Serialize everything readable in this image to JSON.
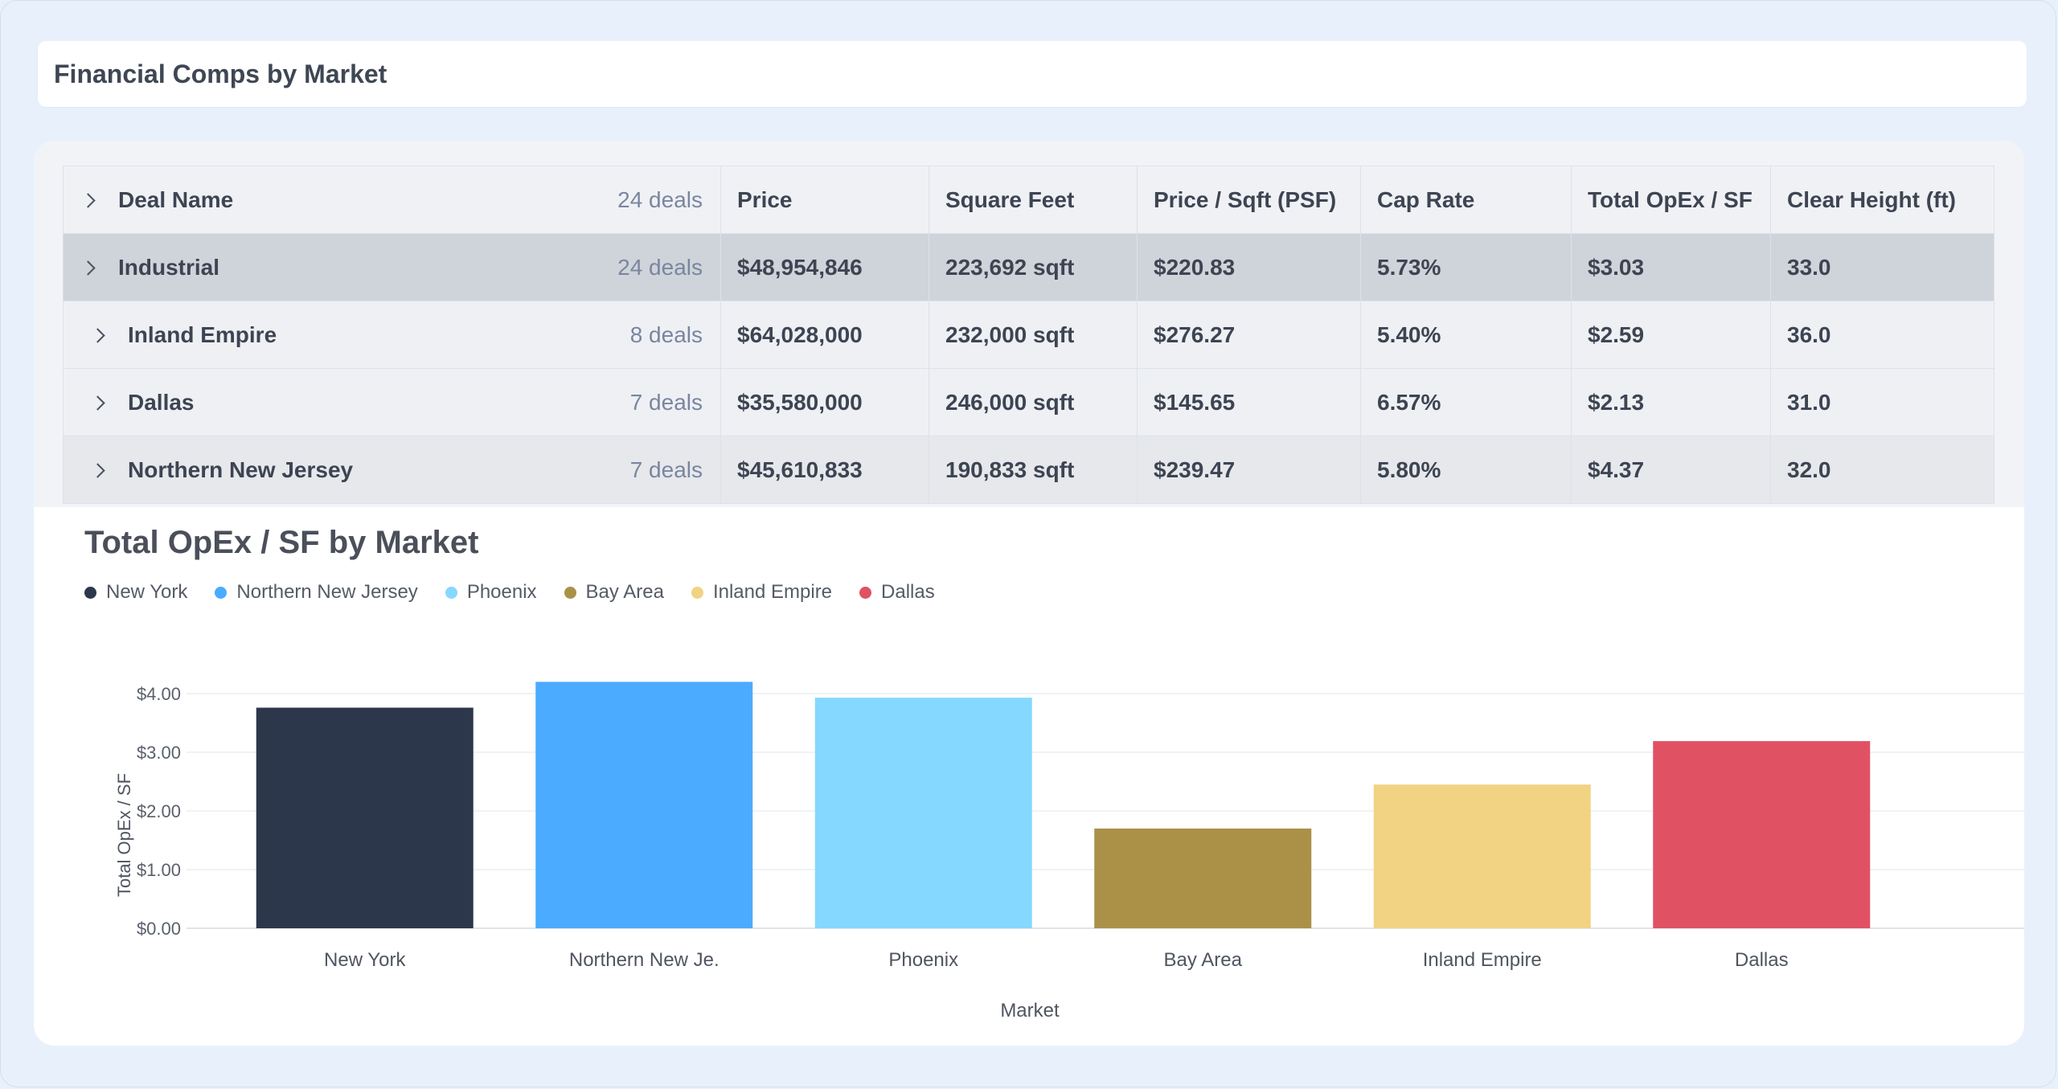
{
  "page": {
    "title": "Financial Comps by Market"
  },
  "table": {
    "columns": [
      "Deal Name",
      "Price",
      "Square Feet",
      "Price / Sqft (PSF)",
      "Cap Rate",
      "Total OpEx / SF",
      "Clear Height (ft)"
    ],
    "header_count": "24 deals",
    "rows": [
      {
        "kind": "group",
        "name": "Industrial",
        "count": "24 deals",
        "price": "$48,954,846",
        "sqft": "223,692 sqft",
        "psf": "$220.83",
        "cap": "5.73%",
        "opex": "$3.03",
        "height": "33.0"
      },
      {
        "kind": "sub",
        "name": "Inland Empire",
        "count": "8 deals",
        "price": "$64,028,000",
        "sqft": "232,000 sqft",
        "psf": "$276.27",
        "cap": "5.40%",
        "opex": "$2.59",
        "height": "36.0"
      },
      {
        "kind": "sub",
        "name": "Dallas",
        "count": "7 deals",
        "price": "$35,580,000",
        "sqft": "246,000 sqft",
        "psf": "$145.65",
        "cap": "6.57%",
        "opex": "$2.13",
        "height": "31.0"
      },
      {
        "kind": "sub-alt",
        "name": "Northern New Jersey",
        "count": "7 deals",
        "price": "$45,610,833",
        "sqft": "190,833 sqft",
        "psf": "$239.47",
        "cap": "5.80%",
        "opex": "$4.37",
        "height": "32.0"
      }
    ]
  },
  "chart_data": {
    "type": "bar",
    "title": "Total OpEx / SF by Market",
    "xlabel": "Market",
    "ylabel": "Total OpEx / SF",
    "categories": [
      "New York",
      "Northern New Je.",
      "Phoenix",
      "Bay Area",
      "Inland Empire",
      "Dallas"
    ],
    "legend": [
      "New York",
      "Northern New Jersey",
      "Phoenix",
      "Bay Area",
      "Inland Empire",
      "Dallas"
    ],
    "values": [
      3.76,
      4.2,
      3.93,
      1.7,
      2.45,
      3.19
    ],
    "colors": [
      "#2d374b",
      "#4aabff",
      "#85d8ff",
      "#ab9048",
      "#f2d383",
      "#e05263"
    ],
    "yticks": [
      "$0.00",
      "$1.00",
      "$2.00",
      "$3.00",
      "$4.00"
    ],
    "ylim": [
      0,
      4.2
    ],
    "grid": true,
    "legend_position": "top-left"
  }
}
